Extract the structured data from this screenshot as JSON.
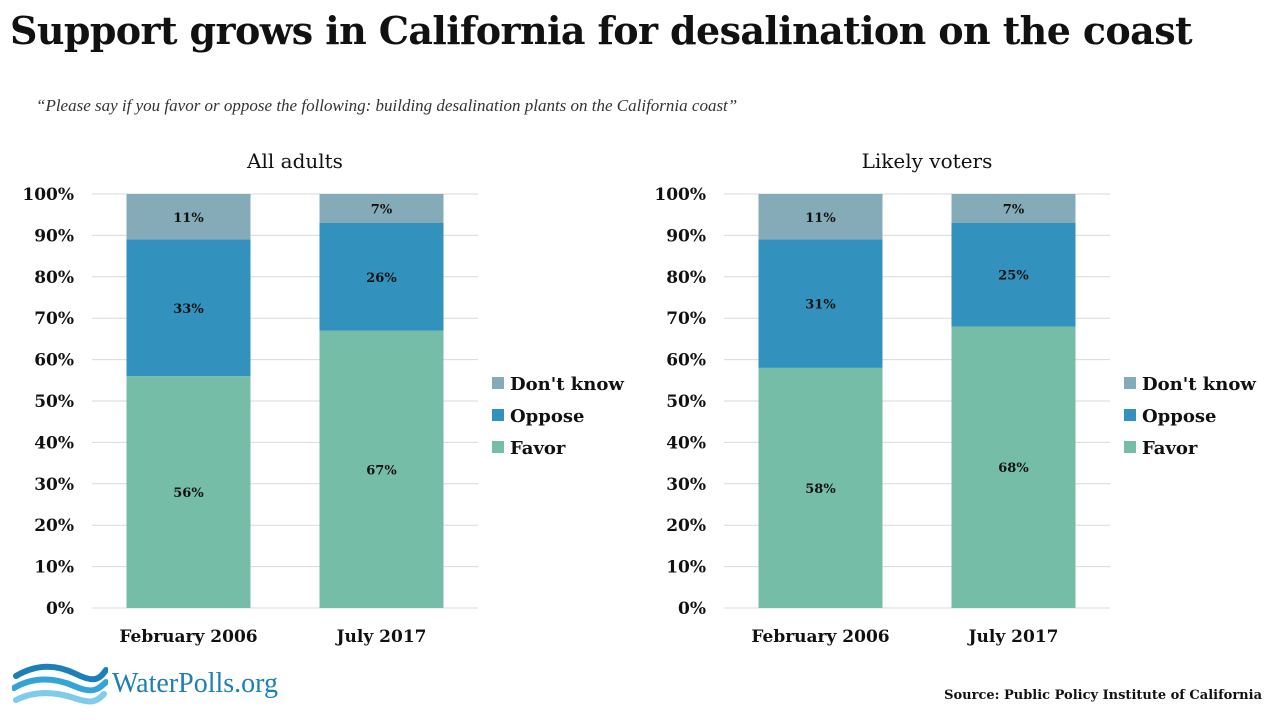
{
  "title": "Support grows in California for desalination on the coast",
  "subtitle": "“Please say if  you favor or oppose the following: building desalination plants on the California coast”",
  "colors": {
    "Don't know": "#86abb8",
    "Oppose": "#3392bd",
    "Favor": "#76bda7"
  },
  "legend": [
    "Don't know",
    "Oppose",
    "Favor"
  ],
  "chart_data": [
    {
      "type": "bar",
      "stacked": true,
      "title": "All adults",
      "categories": [
        "February 2006",
        "July 2017"
      ],
      "series": [
        {
          "name": "Favor",
          "values": [
            56,
            67
          ],
          "labels": [
            "56%",
            "67%"
          ]
        },
        {
          "name": "Oppose",
          "values": [
            33,
            26
          ],
          "labels": [
            "33%",
            "26%"
          ]
        },
        {
          "name": "Don't know",
          "values": [
            11,
            7
          ],
          "labels": [
            "11%",
            "7%"
          ]
        }
      ],
      "yticks": [
        "0%",
        "10%",
        "20%",
        "30%",
        "40%",
        "50%",
        "60%",
        "70%",
        "80%",
        "90%",
        "100%"
      ],
      "ylim": [
        0,
        100
      ],
      "grid": true,
      "legend_position": "right"
    },
    {
      "type": "bar",
      "stacked": true,
      "title": "Likely voters",
      "categories": [
        "February 2006",
        "July 2017"
      ],
      "series": [
        {
          "name": "Favor",
          "values": [
            58,
            68
          ],
          "labels": [
            "58%",
            "68%"
          ]
        },
        {
          "name": "Oppose",
          "values": [
            31,
            25
          ],
          "labels": [
            "31%",
            "25%"
          ]
        },
        {
          "name": "Don't know",
          "values": [
            11,
            7
          ],
          "labels": [
            "11%",
            "7%"
          ]
        }
      ],
      "yticks": [
        "0%",
        "10%",
        "20%",
        "30%",
        "40%",
        "50%",
        "60%",
        "70%",
        "80%",
        "90%",
        "100%"
      ],
      "ylim": [
        0,
        100
      ],
      "grid": true,
      "legend_position": "right"
    }
  ],
  "logo": {
    "text": "WaterPolls.org"
  },
  "source": "Source: Public Policy Institute of California"
}
